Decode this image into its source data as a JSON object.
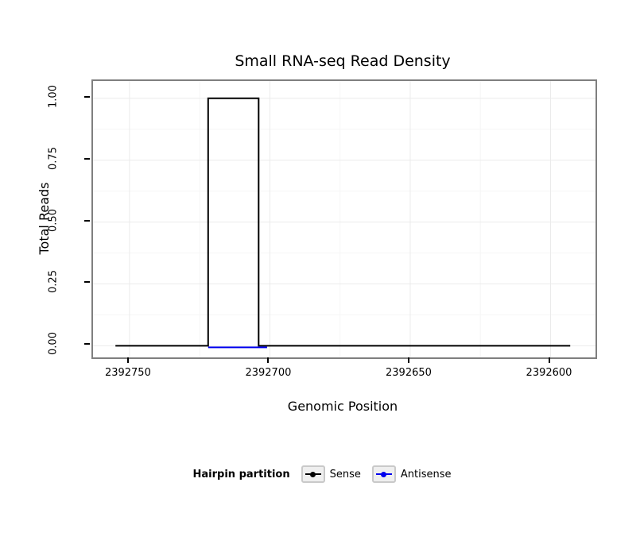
{
  "chart_data": {
    "type": "line",
    "title": "Small RNA-seq Read Density",
    "xlabel": "Genomic Position",
    "ylabel": "Total Reads",
    "legend_title": "Hairpin partition",
    "x_reversed": true,
    "x_range": [
      2392763,
      2392584
    ],
    "y_range": [
      -0.047,
      1.07
    ],
    "x_ticks": [
      2392750,
      2392700,
      2392650,
      2392600
    ],
    "x_tick_labels": [
      "2392750",
      "2392700",
      "2392650",
      "2392600"
    ],
    "x_minor_ticks": [
      2392725,
      2392675,
      2392625
    ],
    "y_ticks": [
      0.0,
      0.25,
      0.5,
      0.75,
      1.0
    ],
    "y_tick_labels": [
      "0.00",
      "0.25",
      "0.50",
      "0.75",
      "1.00"
    ],
    "y_minor_ticks": [
      0.125,
      0.375,
      0.625,
      0.875
    ],
    "grid_major_color": "#ebebeb",
    "grid_minor_color": "#f6f6f6",
    "panel_border_color": "#7f7f7f",
    "series": [
      {
        "name": "Sense",
        "color": "#000000",
        "points": [
          [
            2392755,
            0
          ],
          [
            2392722,
            0
          ],
          [
            2392722,
            1
          ],
          [
            2392704,
            1
          ],
          [
            2392704,
            0
          ],
          [
            2392593,
            0
          ]
        ]
      },
      {
        "name": "Antisense",
        "color": "#0000ee",
        "points": [
          [
            2392722,
            0
          ],
          [
            2392701,
            0
          ]
        ]
      }
    ]
  }
}
